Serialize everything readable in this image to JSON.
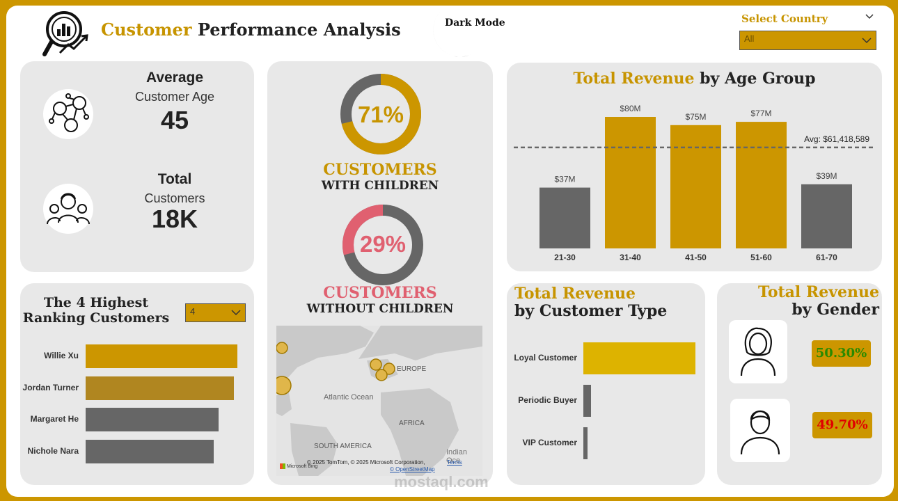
{
  "header": {
    "title_part1": "Customer",
    "title_part2": "Performance Analysis",
    "dark_mode_label": "Dark Mode",
    "country_label": "Select Country",
    "country_value": "All"
  },
  "kpis": {
    "avg_age_title": "Average",
    "avg_age_subtitle": "Customer Age",
    "avg_age_value": "45",
    "total_title": "Total",
    "total_subtitle": "Customers",
    "total_value": "18K"
  },
  "donuts": {
    "with_children_pct": 71,
    "with_children_text": "71%",
    "with_children_line1": "CUSTOMERS",
    "with_children_line2": "WITH CHILDREN",
    "without_children_pct": 29,
    "without_children_text": "29%",
    "without_children_line1": "CUSTOMERS",
    "without_children_line2": "WITHOUT CHILDREN"
  },
  "map": {
    "labels": {
      "atlantic": "Atlantic Ocean",
      "europe": "EUROPE",
      "africa": "AFRICA",
      "south_america": "SOUTH AMERICA",
      "indian": "Indian Oce"
    },
    "attribution": "© 2025 TomTom, © 2025 Microsoft Corporation,",
    "terms": "Terms",
    "osm": "© OpenStreetMap",
    "bing": "Microsoft Bing"
  },
  "top_customers": {
    "title_line1": "The 4 Highest",
    "title_line2": "Ranking Customers",
    "dropdown_value": "4"
  },
  "gender": {
    "title_line1": "Total Revenue",
    "title_line2": "by Gender",
    "female_pct": "50.30%",
    "male_pct": "49.70%"
  },
  "watermark": "mostaql.com",
  "colors": {
    "gold": "#cc9600",
    "grey": "#666666",
    "pink": "#e06070",
    "green": "#2a8a00",
    "red": "#e00000"
  },
  "chart_data": [
    {
      "type": "bar",
      "title_part1": "Total Revenue",
      "title_part2": "by Age Group",
      "categories": [
        "21-30",
        "31-40",
        "41-50",
        "51-60",
        "61-70"
      ],
      "values": [
        37,
        80,
        75,
        77,
        39
      ],
      "value_labels": [
        "$37M",
        "$80M",
        "$75M",
        "$77M",
        "$39M"
      ],
      "highlight": [
        false,
        true,
        true,
        true,
        false
      ],
      "avg_value": 61.418589,
      "avg_label": "Avg: $61,418,589",
      "ylim": [
        0,
        80
      ]
    },
    {
      "type": "bar",
      "orientation": "horizontal",
      "title_part1": "Total Revenue",
      "title_part2": "by Customer Type",
      "categories": [
        "Loyal Customer",
        "Periodic Buyer",
        "VIP Customer"
      ],
      "values": [
        100,
        7,
        4
      ]
    },
    {
      "type": "bar",
      "orientation": "horizontal",
      "categories": [
        "Willie Xu",
        "Jordan Turner",
        "Margaret He",
        "Nichole Nara"
      ],
      "values": [
        100,
        97.5,
        87.5,
        84.5
      ],
      "colors": [
        "#cc9600",
        "#b08620",
        "#666666",
        "#666666"
      ]
    }
  ]
}
